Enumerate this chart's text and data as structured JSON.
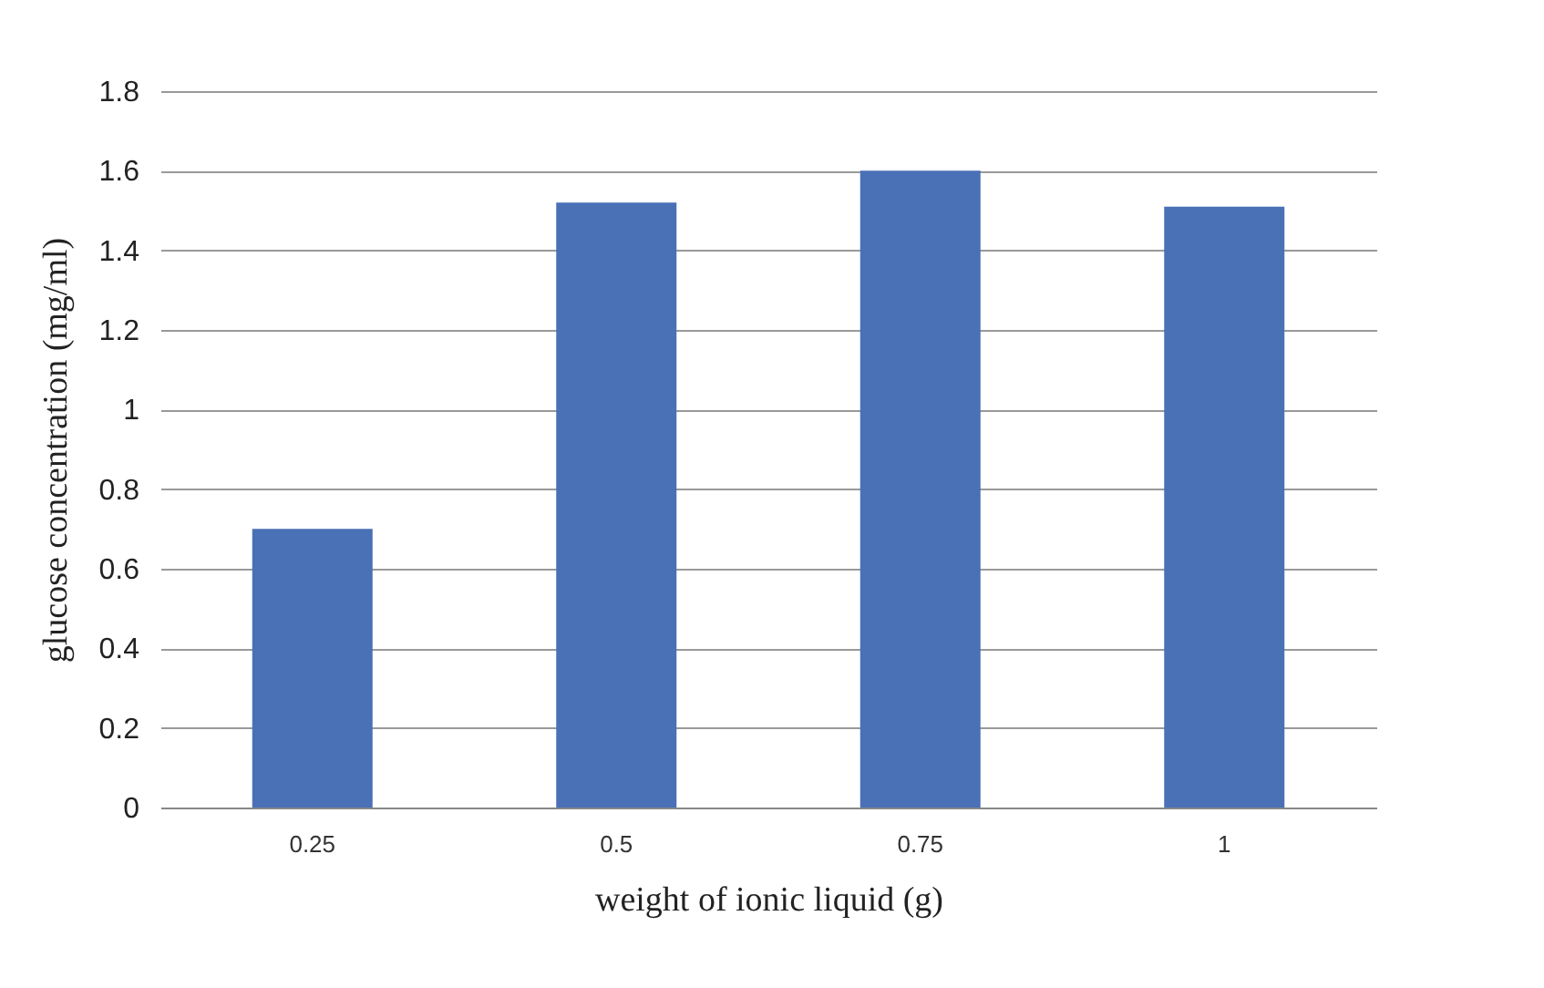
{
  "chart_data": {
    "type": "bar",
    "xlabel": "weight of ionic liquid (g)",
    "ylabel": "glucose concentration (mg/ml)",
    "categories": [
      "0.25",
      "0.5",
      "0.75",
      "1"
    ],
    "values": [
      0.7,
      1.52,
      1.6,
      1.51
    ],
    "color": "#4a70b6",
    "ylim": [
      0,
      1.8
    ],
    "yticks": [
      0,
      0.2,
      0.4,
      0.6,
      0.8,
      1,
      1.2,
      1.4,
      1.6,
      1.8
    ],
    "grid": "y"
  }
}
